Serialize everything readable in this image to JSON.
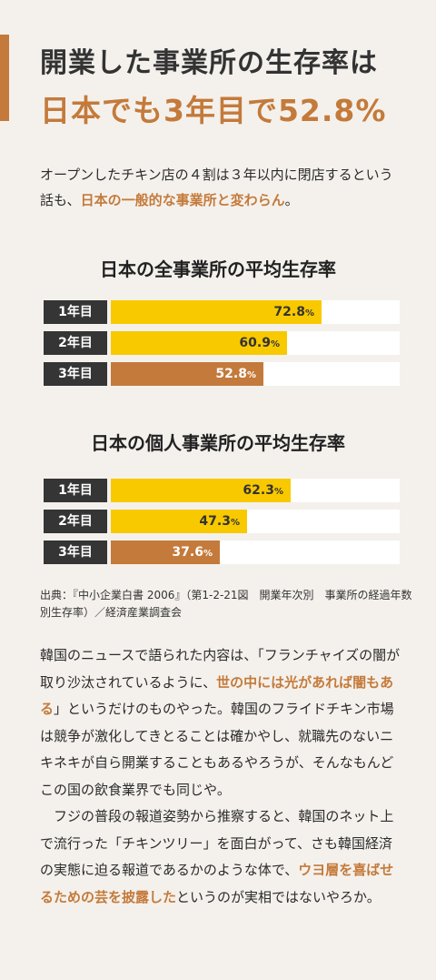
{
  "colors": {
    "accent": "#c47a3a",
    "bar_yellow": "#f9c900",
    "label_bg": "#353535"
  },
  "header": {
    "title_line1": "開業した事業所の生存率は",
    "title_line2": "日本でも3年目で52.8%"
  },
  "lead": {
    "part1": "オープンしたチキン店の４割は３年以内に閉店するという話も、",
    "highlight": "日本の一般的な事業所と変わらん",
    "part2": "。"
  },
  "chart_data": [
    {
      "type": "bar",
      "title": "日本の全事業所の平均生存率",
      "categories": [
        "1年目",
        "2年目",
        "3年目"
      ],
      "values": [
        72.8,
        60.9,
        52.8
      ],
      "unit": "%",
      "xlim": [
        0,
        100
      ],
      "colors": [
        "#f9c900",
        "#f9c900",
        "#c47a3a"
      ]
    },
    {
      "type": "bar",
      "title": "日本の個人事業所の平均生存率",
      "categories": [
        "1年目",
        "2年目",
        "3年目"
      ],
      "values": [
        62.3,
        47.3,
        37.6
      ],
      "unit": "%",
      "xlim": [
        0,
        100
      ],
      "colors": [
        "#f9c900",
        "#f9c900",
        "#c47a3a"
      ]
    }
  ],
  "source": "出典：『中小企業白書 2006』（第1-2-21図　開業年次別　事業所の経過年数別生存率）／経済産業調査会",
  "body": {
    "p1_a": "韓国のニュースで語られた内容は、「フランチャイズの闇が取り沙汰されているように、",
    "p1_hl": "世の中には光があれば闇もある",
    "p1_b": "」というだけのものやった。韓国のフライドチキン市場は競争が激化してきとることは確かやし、就職先のないニキネキが自ら開業することもあるやろうが、そんなもんどこの国の飲食業界でも同じや。",
    "p2_a": "フジの普段の報道姿勢から推察すると、韓国のネット上で流行った「チキンツリー」を面白がって、さも韓国経済の実態に迫る報道であるかのような体で、",
    "p2_hl": "ウヨ層を喜ばせるための芸を披露した",
    "p2_b": "というのが実相ではないやろか。"
  }
}
